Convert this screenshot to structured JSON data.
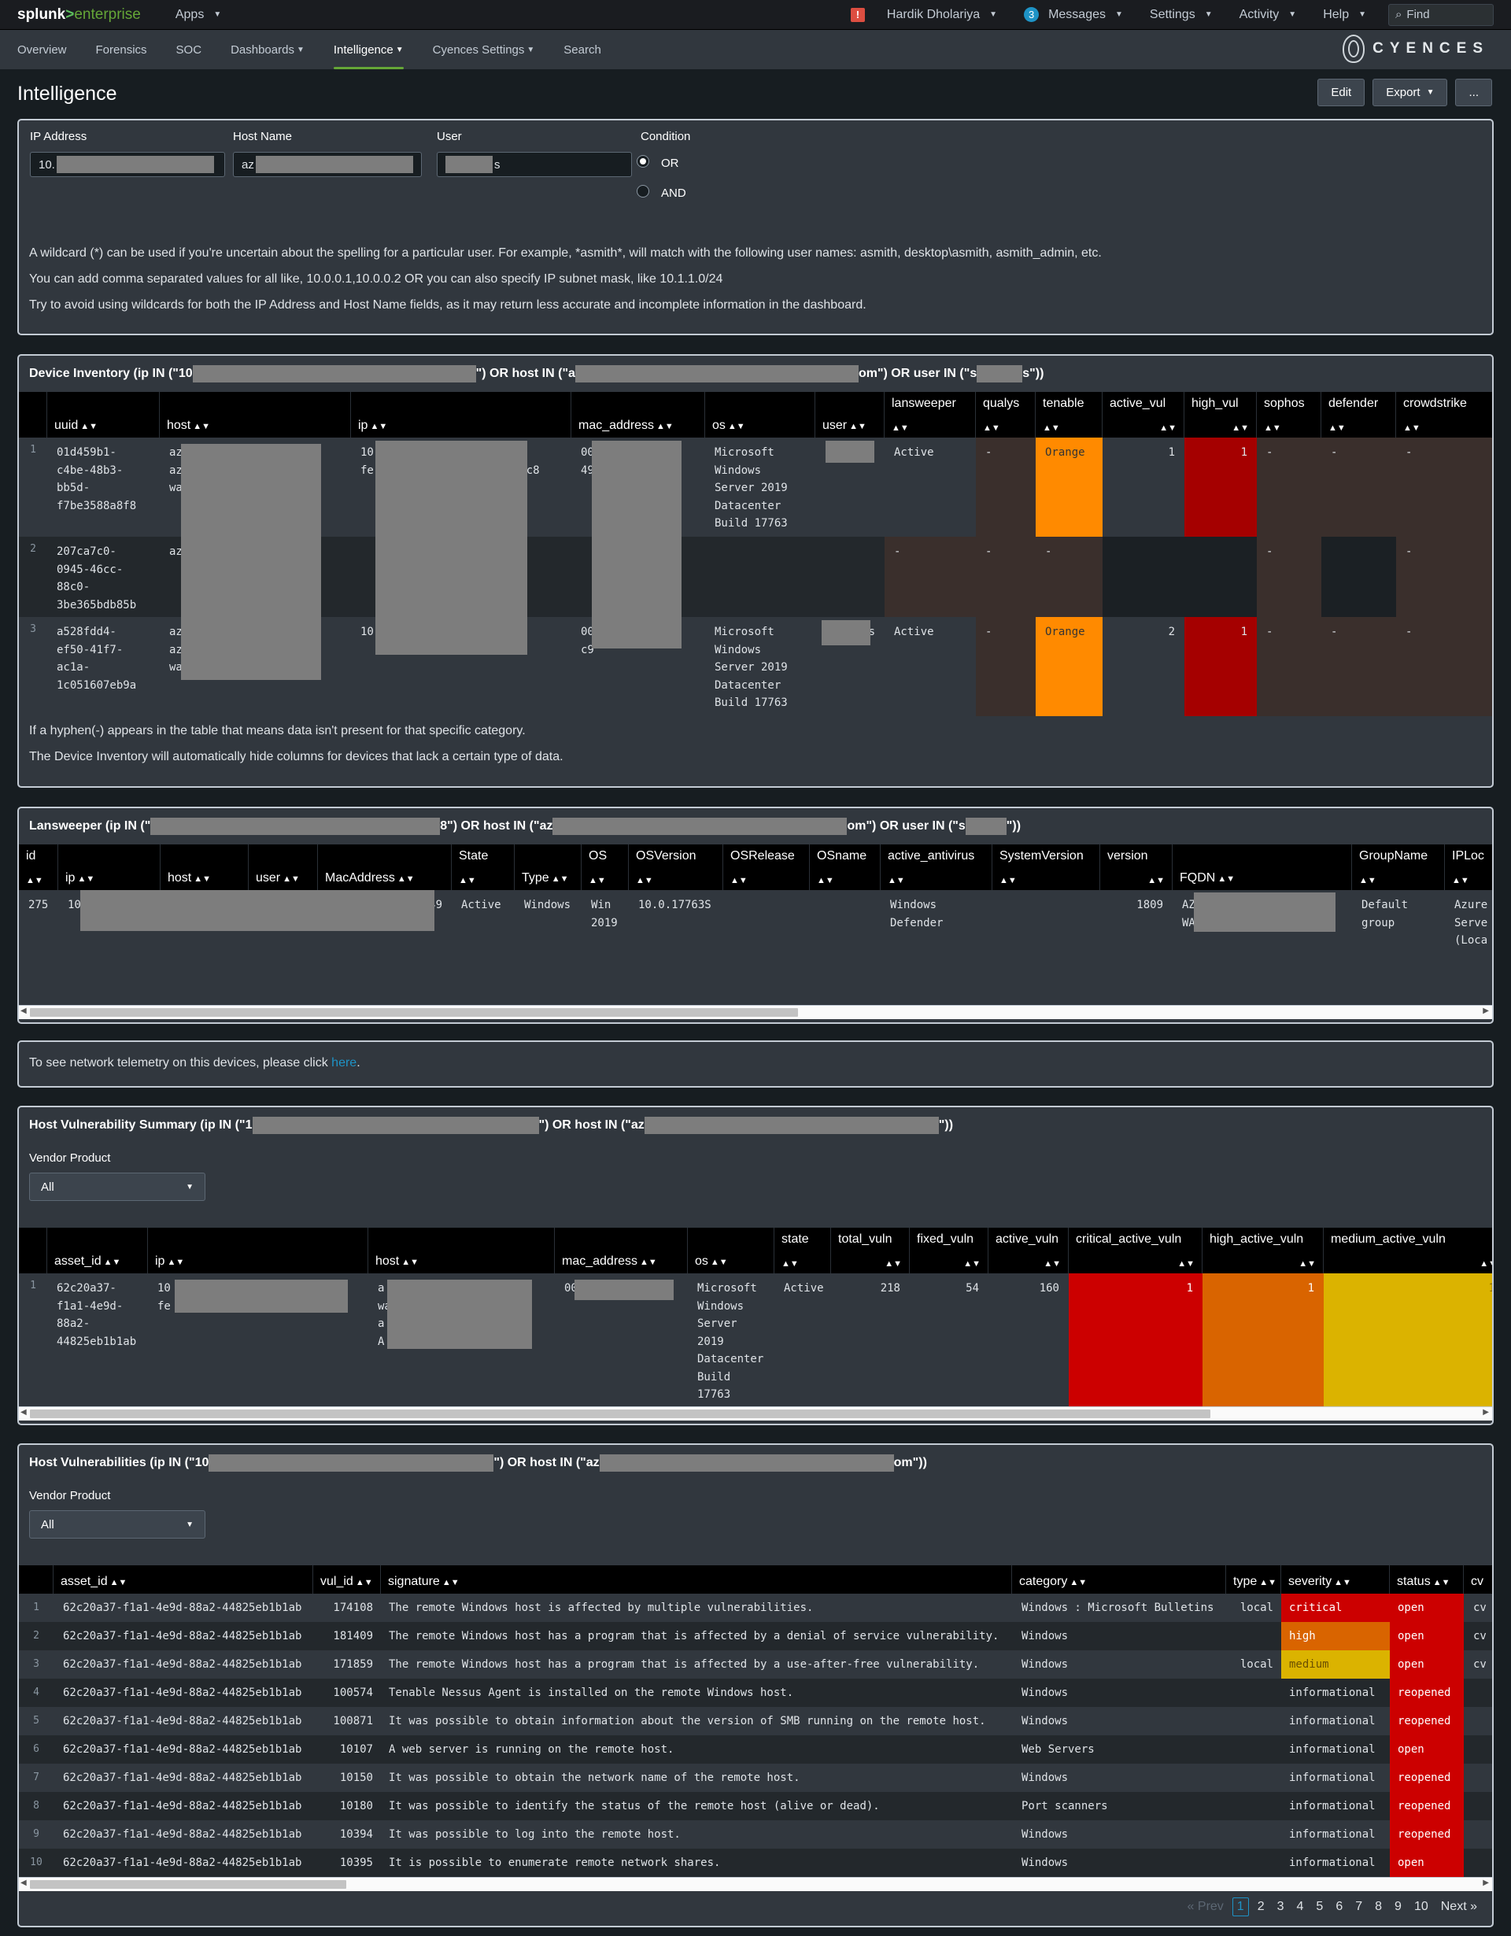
{
  "topbar": {
    "logo_a": "splunk",
    "logo_b": ">",
    "logo_c": "enterprise",
    "apps": "Apps",
    "alert": "!",
    "user": "Hardik Dholariya",
    "messages_count": "3",
    "messages": "Messages",
    "settings": "Settings",
    "activity": "Activity",
    "help": "Help",
    "find_placeholder": "Find"
  },
  "nav": {
    "items": [
      "Overview",
      "Forensics",
      "SOC",
      "Dashboards",
      "Intelligence",
      "Cyences Settings",
      "Search"
    ],
    "brand": "CYENCES"
  },
  "header": {
    "title": "Intelligence",
    "edit": "Edit",
    "export": "Export",
    "more": "..."
  },
  "filters": {
    "ip_label": "IP Address",
    "ip_value": "10.",
    "host_label": "Host Name",
    "host_value": "az",
    "user_label": "User",
    "user_value": "s",
    "condition_label": "Condition",
    "or": "OR",
    "and": "AND",
    "notes": [
      "A wildcard (*) can be used if you're uncertain about the spelling for a particular user. For example, *asmith*, will match with the following user names: asmith, desktop\\asmith, asmith_admin, etc.",
      "You can add comma separated values for all like, 10.0.0.1,10.0.0.2 OR you can also specify IP subnet mask, like 10.1.1.0/24",
      "Try to avoid using wildcards for both the IP Address and Host Name fields, as it may return less accurate and incomplete information in the dashboard."
    ]
  },
  "device_inventory": {
    "title_a": "Device Inventory (ip IN (\"10",
    "title_b": "\") OR host IN (\"a",
    "title_c": "om\") OR user IN (\"s",
    "title_d": "s\"))",
    "columns": [
      "uuid",
      "host",
      "ip",
      "mac_address",
      "os",
      "user",
      "lansweeper",
      "qualys",
      "tenable",
      "active_vul",
      "high_vul",
      "sophos",
      "defender",
      "crowdstrike"
    ],
    "rows": [
      {
        "n": "1",
        "uuid": "01d459b1-\nc4be-48b3-\nbb5d-\nf7be3588a8f8",
        "host": "az\naz\nwa                 com",
        "ip": "10\nfe                    :8ac8",
        "mac": "00              49",
        "os": "Microsoft\nWindows\nServer 2019\nDatacenter\nBuild 17763",
        "user": "s",
        "lansweeper": "Active",
        "qualys": "-",
        "tenable": "Orange",
        "active_vul": "1",
        "high_vul": "1",
        "sophos": "-",
        "defender": "-",
        "crowdstrike": "-"
      },
      {
        "n": "2",
        "uuid": "207ca7c0-\n0945-46cc-\n88c0-\n3be365bdb85b",
        "host": "az",
        "ip": "",
        "mac": "",
        "os": "",
        "user": "",
        "lansweeper": "-",
        "qualys": "-",
        "tenable": "-",
        "active_vul": "",
        "high_vul": "",
        "sophos": "-",
        "defender": "",
        "crowdstrike": "-"
      },
      {
        "n": "3",
        "uuid": "a528fdd4-\nef50-41f7-\nac1a-\n1c051607eb9a",
        "host": "az\naz\nwa                 com",
        "ip": "10",
        "mac": "00              c9",
        "os": "Microsoft\nWindows\nServer 2019\nDatacenter\nBuild 17763",
        "user": "s",
        "lansweeper": "Active",
        "qualys": "-",
        "tenable": "Orange",
        "active_vul": "2",
        "high_vul": "1",
        "sophos": "-",
        "defender": "-",
        "crowdstrike": "-"
      }
    ],
    "notes": [
      "If a hyphen(-) appears in the table that means data isn't present for that specific category.",
      "The Device Inventory will automatically hide columns for devices that lack a certain type of data."
    ]
  },
  "lansweeper": {
    "title_a": "Lansweeper (ip IN (\"",
    "title_b": "8\") OR host IN (\"az",
    "title_c": "om\") OR user IN (\"s",
    "title_d": "\"))",
    "columns": [
      "id",
      "ip",
      "host",
      "user",
      "MacAddress",
      "State",
      "Type",
      "OS",
      "OSVersion",
      "OSRelease",
      "OSname",
      "active_antivirus",
      "SystemVersion",
      "version",
      "FQDN",
      "GroupName",
      "IPLoc"
    ],
    "row": {
      "id": "275",
      "ip": "10",
      "mac": "49",
      "state": "Active",
      "type": "Windows",
      "os": "Win\n2019",
      "osversion": "10.0.17763S",
      "antivirus": "Windows\nDefender",
      "version": "1809",
      "fqdn": "AZ\nWA              om",
      "group": "Default\ngroup",
      "iploc": "Azure\nServe\n(Loca"
    }
  },
  "telemetry": {
    "text": "To see network telemetry on this devices, please click ",
    "link": "here",
    "end": "."
  },
  "vuln_summary": {
    "title_a": "Host Vulnerability Summary (ip IN (\"1",
    "title_b": "\") OR host IN (\"az",
    "title_c": "\"))",
    "vendor_label": "Vendor Product",
    "vendor_value": "All",
    "columns": [
      "asset_id",
      "ip",
      "host",
      "mac_address",
      "os",
      "state",
      "total_vuln",
      "fixed_vuln",
      "active_vuln",
      "critical_active_vuln",
      "high_active_vuln",
      "medium_active_vuln"
    ],
    "row": {
      "n": "1",
      "asset_id": "62c20a37-\nf1a1-4e9d-\n88a2-\n44825eb1b1ab",
      "ip": "10\nfe                    c8",
      "host": "a\nwa                   om\na\nA",
      "mac": "00            9",
      "os": "Microsoft\nWindows\nServer\n2019\nDatacenter\nBuild\n17763",
      "state": "Active",
      "total_vuln": "218",
      "fixed_vuln": "54",
      "active_vuln": "160",
      "critical": "1",
      "high": "1",
      "medium": "1"
    }
  },
  "vulns": {
    "title_a": "Host Vulnerabilities (ip IN (\"10",
    "title_b": "\") OR host IN (\"az",
    "title_c": "om\"))",
    "vendor_label": "Vendor Product",
    "vendor_value": "All",
    "columns": [
      "asset_id",
      "vul_id",
      "signature",
      "category",
      "type",
      "severity",
      "status",
      "cv"
    ],
    "rows": [
      {
        "n": "1",
        "asset": "62c20a37-f1a1-4e9d-88a2-44825eb1b1ab",
        "vul": "174108",
        "sig": "The remote Windows host is affected by multiple vulnerabilities.",
        "cat": "Windows : Microsoft Bulletins",
        "type": "local",
        "sev": "critical",
        "status": "open",
        "cv": "cv"
      },
      {
        "n": "2",
        "asset": "62c20a37-f1a1-4e9d-88a2-44825eb1b1ab",
        "vul": "181409",
        "sig": "The remote Windows host has a program that is affected by a denial of service vulnerability.",
        "cat": "Windows",
        "type": "",
        "sev": "high",
        "status": "open",
        "cv": "cv"
      },
      {
        "n": "3",
        "asset": "62c20a37-f1a1-4e9d-88a2-44825eb1b1ab",
        "vul": "171859",
        "sig": "The remote Windows host has a program that is affected by a use-after-free vulnerability.",
        "cat": "Windows",
        "type": "local",
        "sev": "medium",
        "status": "open",
        "cv": "cv"
      },
      {
        "n": "4",
        "asset": "62c20a37-f1a1-4e9d-88a2-44825eb1b1ab",
        "vul": "100574",
        "sig": "Tenable Nessus Agent is installed on the remote Windows host.",
        "cat": "Windows",
        "type": "",
        "sev": "informational",
        "status": "reopened",
        "cv": ""
      },
      {
        "n": "5",
        "asset": "62c20a37-f1a1-4e9d-88a2-44825eb1b1ab",
        "vul": "100871",
        "sig": "It was possible to obtain information about the version of SMB running on the remote host.",
        "cat": "Windows",
        "type": "",
        "sev": "informational",
        "status": "reopened",
        "cv": ""
      },
      {
        "n": "6",
        "asset": "62c20a37-f1a1-4e9d-88a2-44825eb1b1ab",
        "vul": "10107",
        "sig": "A web server is running on the remote host.",
        "cat": "Web Servers",
        "type": "",
        "sev": "informational",
        "status": "open",
        "cv": ""
      },
      {
        "n": "7",
        "asset": "62c20a37-f1a1-4e9d-88a2-44825eb1b1ab",
        "vul": "10150",
        "sig": "It was possible to obtain the network name of the remote host.",
        "cat": "Windows",
        "type": "",
        "sev": "informational",
        "status": "reopened",
        "cv": ""
      },
      {
        "n": "8",
        "asset": "62c20a37-f1a1-4e9d-88a2-44825eb1b1ab",
        "vul": "10180",
        "sig": "It was possible to identify the status of the remote host (alive or dead).",
        "cat": "Port scanners",
        "type": "",
        "sev": "informational",
        "status": "reopened",
        "cv": ""
      },
      {
        "n": "9",
        "asset": "62c20a37-f1a1-4e9d-88a2-44825eb1b1ab",
        "vul": "10394",
        "sig": "It was possible to log into the remote host.",
        "cat": "Windows",
        "type": "",
        "sev": "informational",
        "status": "reopened",
        "cv": ""
      },
      {
        "n": "10",
        "asset": "62c20a37-f1a1-4e9d-88a2-44825eb1b1ab",
        "vul": "10395",
        "sig": "It is possible to enumerate remote network shares.",
        "cat": "Windows",
        "type": "",
        "sev": "informational",
        "status": "open",
        "cv": ""
      }
    ],
    "pager": {
      "prev": "« Prev",
      "pages": [
        "1",
        "2",
        "3",
        "4",
        "5",
        "6",
        "7",
        "8",
        "9",
        "10"
      ],
      "next": "Next »"
    }
  },
  "colors": {
    "critical": "#cc0000",
    "high": "#d96400",
    "medium": "#dbb300",
    "orange": "#ff8a00",
    "darkred": "#a50000",
    "status_red": "#cc0000",
    "accent": "#65a637",
    "link": "#1e93c6"
  }
}
